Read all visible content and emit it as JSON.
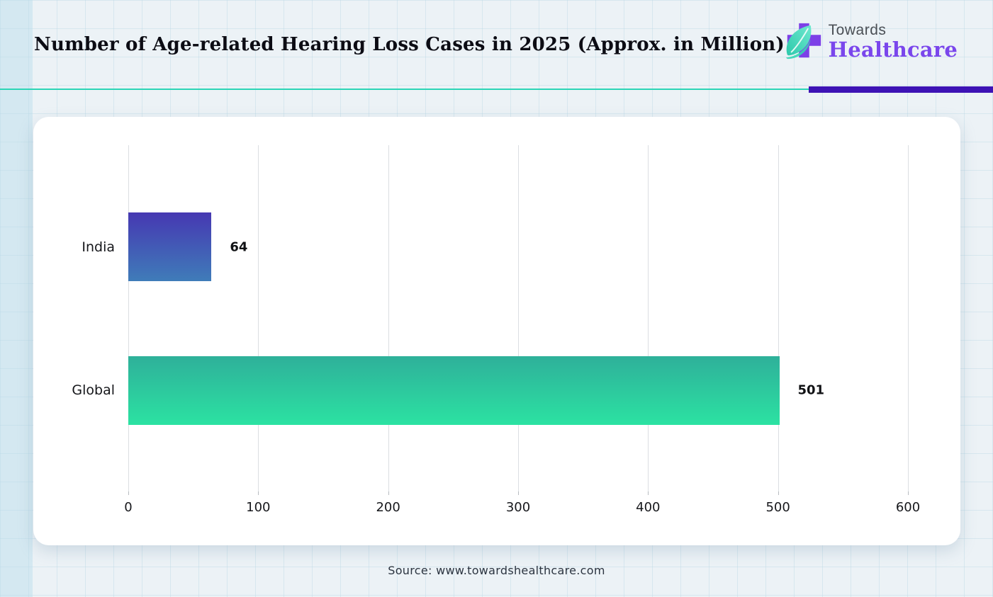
{
  "header": {
    "brand": {
      "line1": "Towards",
      "line2": "Healthcare"
    }
  },
  "footer": {
    "source": "Source: www.towardshealthcare.com"
  },
  "colors": {
    "divider_teal": "#2cd5b6",
    "divider_purple": "#3d13b5",
    "brand_purple": "#7a46ec",
    "leaf_teal": "#35d6b4",
    "gridline": "#dbdee2"
  },
  "icons": {
    "logo": "cross-with-leaf-icon"
  },
  "chart_data": {
    "type": "bar",
    "orientation": "horizontal",
    "title": "Number of Age-related Hearing Loss Cases in 2025 (Approx. in Million)",
    "categories": [
      "India",
      "Global"
    ],
    "values": [
      64,
      501
    ],
    "xlabel": "",
    "ylabel": "",
    "xlim": [
      0,
      600
    ],
    "xticks": [
      0,
      100,
      200,
      300,
      400,
      500,
      600
    ],
    "grid": "vertical",
    "legend": "none",
    "bar_colors": [
      {
        "top": "#4638b2",
        "bottom": "#3f7cb9"
      },
      {
        "top": "#2eb09a",
        "bottom": "#2ce2a2"
      }
    ]
  }
}
